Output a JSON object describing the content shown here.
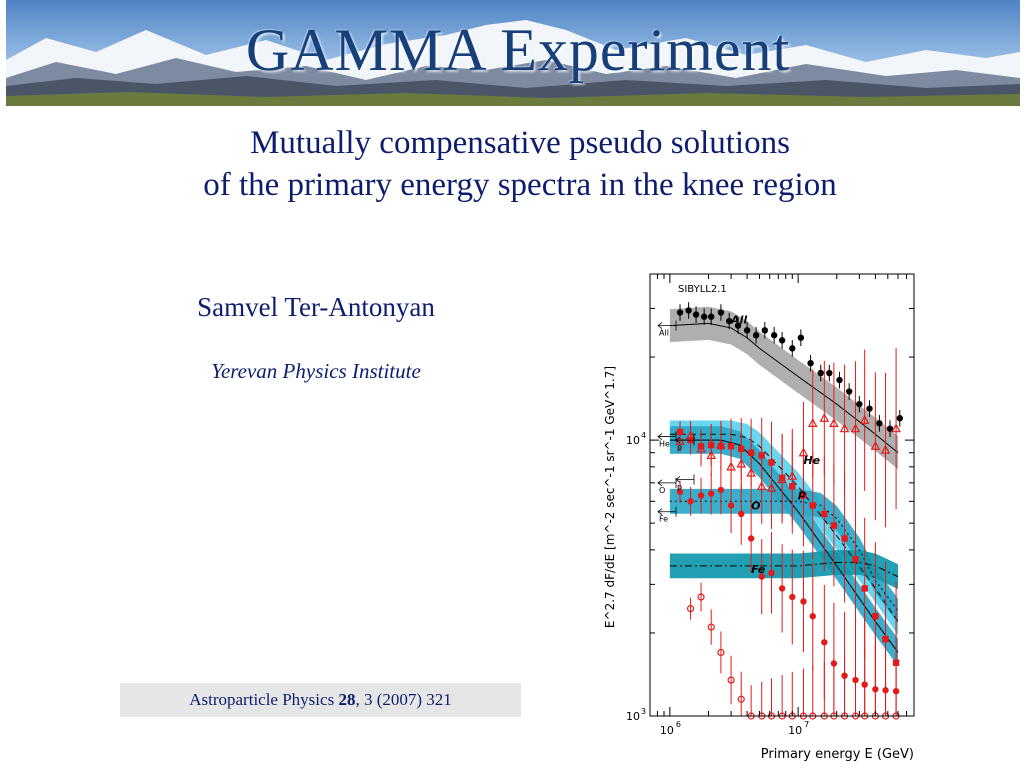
{
  "banner": {
    "title": "GAMMA Experiment"
  },
  "title": {
    "line1": "Mutually compensative pseudo solutions",
    "line2": "of the primary energy spectra in the knee region"
  },
  "author": "Samvel Ter-Antonyan",
  "institute": "Yerevan Physics Institute",
  "citation": {
    "journal": "Astroparticle Physics ",
    "volume": "28",
    "rest": ", 3 (2007) 321"
  },
  "colors": {
    "text": "#0d1d6e",
    "band_all": "#a6a6a6",
    "band_light": "#5ad2ee",
    "band_mid": "#2aa7c7",
    "band_dark": "#0f97ab",
    "data_red": "#e31b1b"
  },
  "chart_data": {
    "type": "scatter",
    "xlabel": "Primary energy E (GeV)",
    "ylabel": "E^2.7 dF/dE [m^-2 sec^-1 sr^-1 GeV^1.7]",
    "xscale": "log",
    "yscale": "log",
    "xlim": [
      700000,
      80000000
    ],
    "ylim": [
      1000,
      40000
    ],
    "x_ticks": [
      {
        "base": "10",
        "exp": "6"
      },
      {
        "base": "10",
        "exp": "7"
      }
    ],
    "y_ticks": [
      {
        "base": "10",
        "exp": "3"
      },
      {
        "base": "10",
        "exp": "4"
      }
    ],
    "annotation": "SIBYLL2.1",
    "arrow_labels": [
      "All",
      "He",
      "p",
      "O",
      "p",
      "Fe"
    ],
    "series": [
      {
        "name": "All",
        "color": "#000000",
        "marker": "circle",
        "x": [
          1200000.0,
          1400000.0,
          1600000.0,
          1850000.0,
          2100000.0,
          2500000.0,
          2900000.0,
          3400000.0,
          4000000.0,
          4700000.0,
          5500000.0,
          6500000.0,
          7500000.0,
          9000000.0,
          10500000.0,
          12500000.0,
          15000000.0,
          17500000.0,
          21000000.0,
          25000000.0,
          30000000.0,
          36000000.0,
          43000000.0,
          52000000.0,
          62000000.0
        ],
        "y": [
          29000,
          29500,
          28500,
          28000,
          28000,
          29000,
          27000,
          26000,
          25000,
          24000,
          25000,
          24000,
          23000,
          21500,
          23500,
          19000,
          17500,
          17500,
          16500,
          15000,
          13500,
          13000,
          11500,
          11000,
          12000
        ]
      },
      {
        "name": "He",
        "color": "#e31b1b",
        "marker": "triangle",
        "x": [
          1200000.0,
          1450000.0,
          1750000.0,
          2100000.0,
          2500000.0,
          3000000.0,
          3600000.0,
          4300000.0,
          5200000.0,
          6200000.0,
          7500000.0,
          9000000.0,
          11000000.0,
          13000000.0,
          16000000.0,
          19000000.0,
          23000000.0,
          28000000.0,
          33000000.0,
          40000000.0,
          48000000.0,
          58000000.0
        ],
        "y": [
          9900,
          10400,
          9300,
          8800,
          9600,
          8000,
          8200,
          7600,
          6800,
          6700,
          7200,
          7400,
          9000,
          11500,
          12000,
          11500,
          11000,
          11000,
          11800,
          9500,
          9200,
          11000
        ]
      },
      {
        "name": "p",
        "color": "#e31b1b",
        "marker": "square",
        "x": [
          1200000.0,
          1450000.0,
          1750000.0,
          2100000.0,
          2500000.0,
          3000000.0,
          3600000.0,
          4300000.0,
          5200000.0,
          6200000.0,
          7500000.0,
          9000000.0,
          11000000.0,
          13000000.0,
          16000000.0,
          19000000.0,
          23000000.0,
          28000000.0,
          33000000.0,
          40000000.0,
          48000000.0,
          58000000.0
        ],
        "y": [
          10700,
          10000,
          9500,
          9600,
          9500,
          9500,
          9300,
          9000,
          8800,
          8300,
          7300,
          6800,
          6300,
          5800,
          5400,
          4900,
          4400,
          3700,
          2900,
          2300,
          1900,
          1560
        ]
      },
      {
        "name": "O",
        "color": "#e31b1b",
        "marker": "circle",
        "x": [
          1200000.0,
          1450000.0,
          1750000.0,
          2100000.0,
          2500000.0,
          3000000.0,
          3600000.0,
          4300000.0,
          5200000.0,
          6200000.0,
          7500000.0,
          9000000.0,
          11000000.0,
          13000000.0,
          16000000.0,
          19000000.0,
          23000000.0,
          28000000.0,
          33000000.0,
          40000000.0,
          48000000.0,
          58000000.0
        ],
        "y": [
          6500,
          6000,
          6300,
          6400,
          6600,
          5800,
          5400,
          4400,
          3200,
          3300,
          2900,
          2700,
          2600,
          2300,
          1850,
          1550,
          1400,
          1350,
          1300,
          1250,
          1240,
          1230
        ]
      },
      {
        "name": "Fe",
        "color": "#e31b1b",
        "marker": "circle-open",
        "x": [
          1450000.0,
          1750000.0,
          2100000.0,
          2500000.0,
          3000000.0,
          3600000.0,
          4300000.0,
          5200000.0,
          6200000.0,
          7500000.0,
          9000000.0,
          11000000.0,
          13000000.0,
          16000000.0,
          19000000.0,
          23000000.0,
          28000000.0,
          33000000.0,
          40000000.0,
          48000000.0,
          58000000.0
        ],
        "y": [
          2450,
          2700,
          2100,
          1700,
          1350,
          1150,
          1000,
          1000,
          1000,
          1000,
          1000,
          1000,
          1000,
          1000,
          1000,
          1000,
          1000,
          1000,
          1000,
          1000,
          1000
        ]
      }
    ],
    "models": [
      {
        "name": "All",
        "x": [
          1000000.0,
          2000000.0,
          3000000.0,
          4000000.0,
          5000000.0,
          10000000.0,
          20000000.0,
          40000000.0,
          60000000.0
        ],
        "y": [
          26000,
          26500,
          25500,
          23500,
          21500,
          17000,
          13500,
          10500,
          9000
        ],
        "band": 0.06
      },
      {
        "name": "He",
        "x": [
          1000000.0,
          3000000.0,
          4000000.0,
          5000000.0,
          10000000.0,
          20000000.0,
          40000000.0,
          60000000.0
        ],
        "y": [
          10500,
          10500,
          10200,
          9500,
          6800,
          4500,
          2900,
          2200
        ],
        "band": 0.05
      },
      {
        "name": "p",
        "x": [
          1000000.0,
          2500000.0,
          3500000.0,
          5000000.0,
          10000000.0,
          20000000.0,
          40000000.0,
          60000000.0
        ],
        "y": [
          10000,
          10000,
          9600,
          8200,
          5500,
          3500,
          2200,
          1700
        ],
        "band": 0.05
      },
      {
        "name": "O",
        "x": [
          1000000.0,
          5000000.0,
          10000000.0,
          15000000.0,
          20000000.0,
          30000000.0,
          40000000.0,
          60000000.0
        ],
        "y": [
          6000,
          6000,
          6000,
          5800,
          5200,
          4000,
          3100,
          2400
        ],
        "band": 0.045
      },
      {
        "name": "Fe",
        "x": [
          1000000.0,
          10000000.0,
          20000000.0,
          30000000.0,
          40000000.0,
          60000000.0
        ],
        "y": [
          3500,
          3500,
          3600,
          3600,
          3500,
          3200
        ],
        "band": 0.045
      }
    ]
  }
}
